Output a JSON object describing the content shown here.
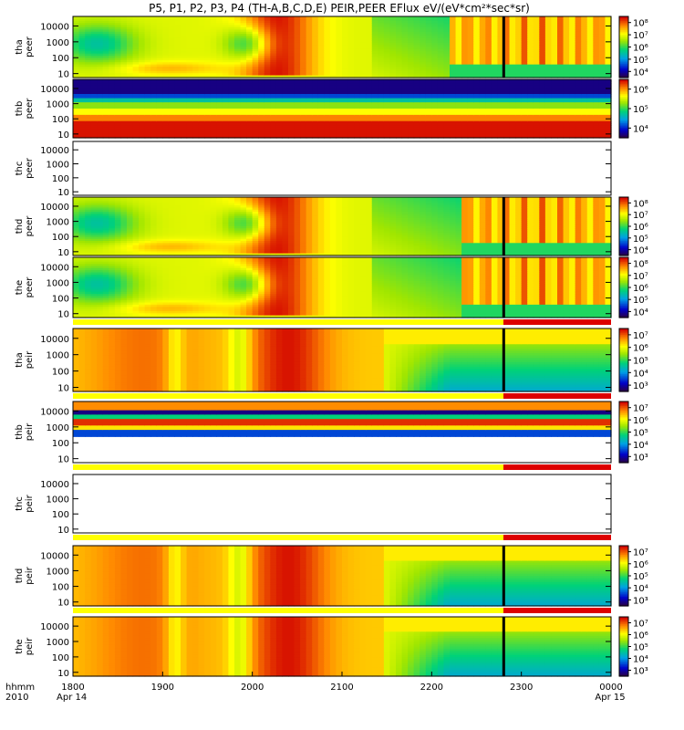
{
  "title": "P5, P1, P2, P3, P4 (TH-A,B,C,D,E) PEIR,PEER EFlux eV/(eV*cm²*sec*sr)",
  "time_axis": {
    "row1_label": "hhmm",
    "row2_label": "2010",
    "ticks": [
      "1800",
      "1900",
      "2000",
      "2100",
      "2200",
      "2300",
      "0000"
    ],
    "start_date": "Apr 14",
    "end_date": "Apr 15"
  },
  "chart_data": {
    "type": "heatmap",
    "x_range": [
      "2010-04-14 18:00",
      "2010-04-15 00:00"
    ],
    "y_scale": "log",
    "y_ticks": [
      "10",
      "100",
      "1000",
      "10000"
    ],
    "panels": [
      {
        "probe": "thb_top",
        "label1": "tha",
        "label2": "peer",
        "kind": "tha_peer",
        "cb_labels": [
          "10⁸",
          "10⁷",
          "10⁶",
          "10⁵",
          "10⁴"
        ],
        "cb_range": [
          4,
          8
        ],
        "flags": false
      },
      {
        "label1": "thb",
        "label2": "peer",
        "kind": "thb_peer",
        "cb_labels": [
          "10⁶",
          "10⁵",
          "10⁴"
        ],
        "cb_range": [
          3.5,
          6
        ],
        "flags": false
      },
      {
        "label1": "thc",
        "label2": "peer",
        "kind": "empty",
        "cb_labels": [],
        "flags": false
      },
      {
        "label1": "thd",
        "label2": "peer",
        "kind": "thd_peer",
        "cb_labels": [
          "10⁸",
          "10⁷",
          "10⁶",
          "10⁵",
          "10⁴"
        ],
        "cb_range": [
          4,
          8
        ],
        "flags": false
      },
      {
        "label1": "the",
        "label2": "peer",
        "kind": "the_peer",
        "cb_labels": [
          "10⁸",
          "10⁷",
          "10⁶",
          "10⁵",
          "10⁴"
        ],
        "cb_range": [
          4,
          8
        ],
        "flags": true
      },
      {
        "label1": "tha",
        "label2": "peir",
        "kind": "tha_peir",
        "cb_labels": [
          "10⁷",
          "10⁶",
          "10⁵",
          "10⁴",
          "10³"
        ],
        "cb_range": [
          3,
          7
        ],
        "flags": true
      },
      {
        "label1": "thb",
        "label2": "peir",
        "kind": "thb_peir",
        "cb_labels": [
          "10⁷",
          "10⁶",
          "10⁵",
          "10⁴",
          "10³"
        ],
        "cb_range": [
          3,
          7
        ],
        "flags": true
      },
      {
        "label1": "thc",
        "label2": "peir",
        "kind": "empty",
        "cb_labels": [],
        "flags": true
      },
      {
        "label1": "thd",
        "label2": "peir",
        "kind": "thd_peir",
        "cb_labels": [
          "10⁷",
          "10⁶",
          "10⁵",
          "10⁴",
          "10³"
        ],
        "cb_range": [
          3,
          7
        ],
        "flags": true
      },
      {
        "label1": "the",
        "label2": "peir",
        "kind": "the_peir",
        "cb_labels": [
          "10⁷",
          "10⁶",
          "10⁵",
          "10⁴",
          "10³"
        ],
        "cb_range": [
          3,
          7
        ],
        "flags": false
      }
    ]
  },
  "colors": {
    "red": "#dd0000",
    "yellow": "#ffff00",
    "white": "#ffffff"
  }
}
